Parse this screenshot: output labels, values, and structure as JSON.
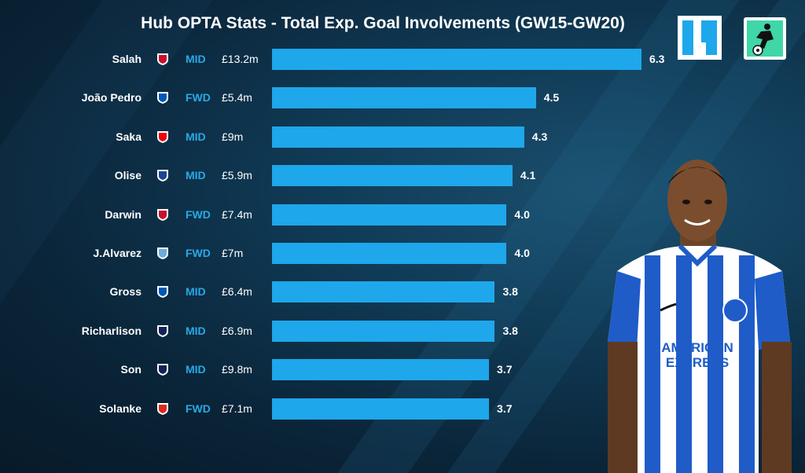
{
  "chart_data": {
    "type": "bar",
    "orientation": "horizontal",
    "title": "Hub OPTA Stats - Total Exp. Goal Involvements (GW15-GW20)",
    "categories": [
      "Salah",
      "João Pedro",
      "Saka",
      "Olise",
      "Darwin",
      "J.Alvarez",
      "Gross",
      "Richarlison",
      "Son",
      "Solanke"
    ],
    "positions": [
      "MID",
      "FWD",
      "MID",
      "MID",
      "FWD",
      "FWD",
      "MID",
      "MID",
      "MID",
      "FWD"
    ],
    "prices": [
      "£13.2m",
      "£5.4m",
      "£9m",
      "£5.9m",
      "£7.4m",
      "£7m",
      "£6.4m",
      "£6.9m",
      "£9.8m",
      "£7.1m"
    ],
    "clubs": [
      "liverpool",
      "brighton",
      "arsenal",
      "crystal-palace",
      "liverpool",
      "man-city",
      "brighton",
      "tottenham",
      "tottenham",
      "bournemouth"
    ],
    "values": [
      6.3,
      4.5,
      4.3,
      4.1,
      4.0,
      4.0,
      3.8,
      3.8,
      3.7,
      3.7
    ],
    "value_labels": [
      "6.3",
      "4.5",
      "4.3",
      "4.1",
      "4.0",
      "4.0",
      "3.8",
      "3.8",
      "3.7",
      "3.7"
    ],
    "xlim": [
      0,
      6.3
    ],
    "grid": false,
    "bar_color": "#1ea7ea",
    "position_color": "#29a8e6"
  },
  "logos": {
    "hub": "hub-logo",
    "fantasy": "fantasy-football-scout-logo"
  },
  "photo": "player-photo-brighton-kit",
  "kit_sponsor": [
    "AMERICAN",
    "EXPRESS"
  ]
}
